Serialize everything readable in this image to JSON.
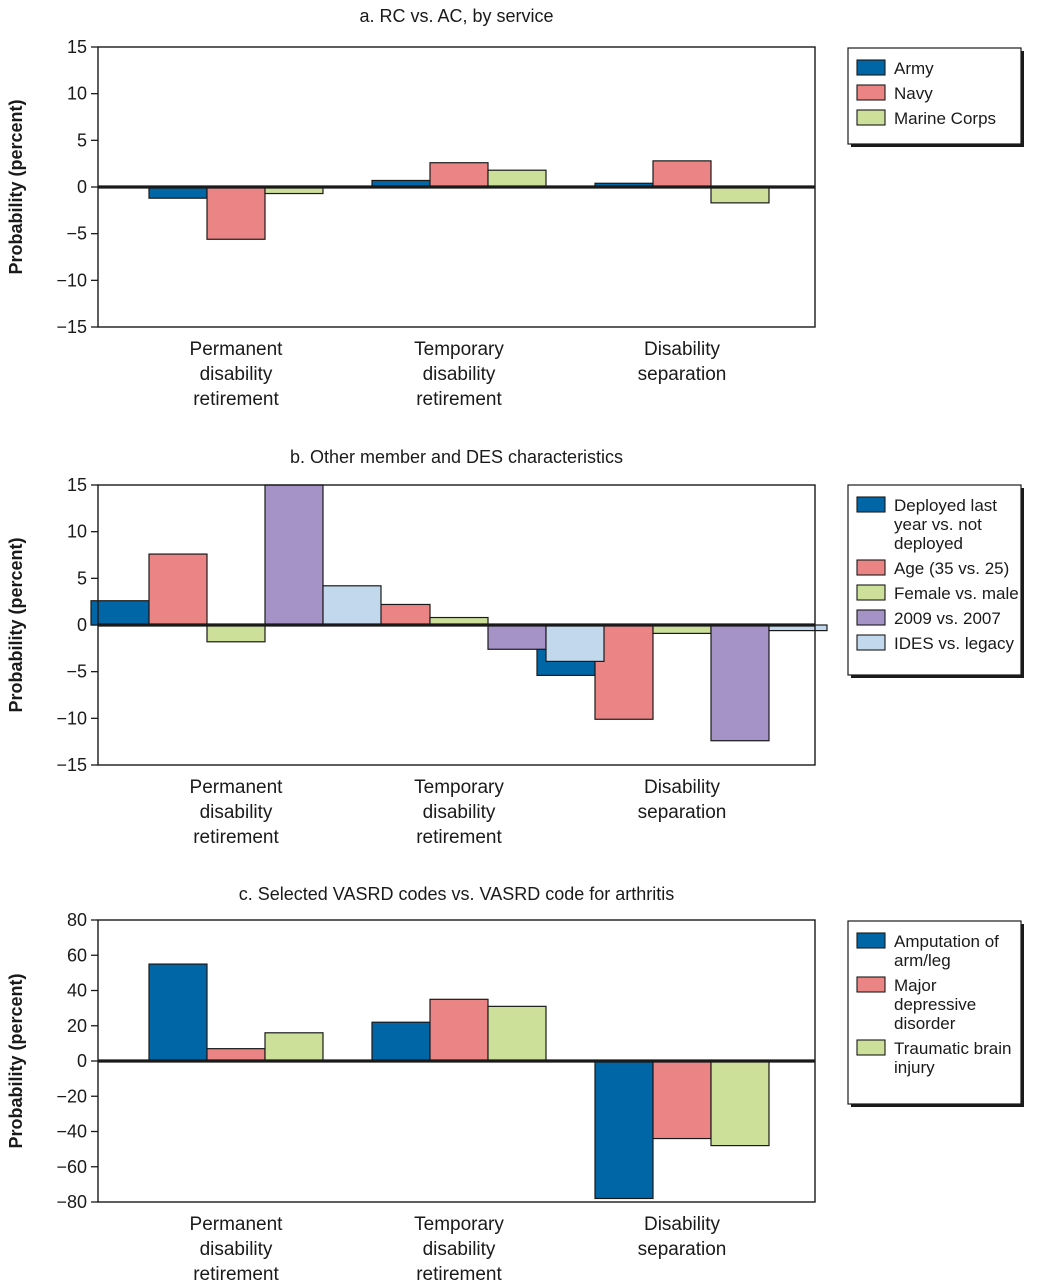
{
  "chart_data": [
    {
      "type": "bar",
      "title": "a. RC vs. AC, by service",
      "ylabel": "Probability (percent)",
      "xlabel": "",
      "ylim": [
        -15,
        15
      ],
      "yticks": [
        "15",
        "10",
        "5",
        "0",
        "−5",
        "−10",
        "−15"
      ],
      "ytick_values": [
        15,
        10,
        5,
        0,
        -5,
        -10,
        -15
      ],
      "categories": [
        [
          "Permanent",
          "disability",
          "retirement"
        ],
        [
          "Temporary",
          "disability",
          "retirement"
        ],
        [
          "Disability",
          "separation"
        ]
      ],
      "legend_position": "right",
      "series": [
        {
          "name": [
            "Army"
          ],
          "color": "#0066a6",
          "values": [
            -1.2,
            0.7,
            0.4
          ]
        },
        {
          "name": [
            "Navy"
          ],
          "color": "#eb8585",
          "values": [
            -5.6,
            2.6,
            2.8
          ]
        },
        {
          "name": [
            "Marine Corps"
          ],
          "color": "#cce099",
          "values": [
            -0.7,
            1.8,
            -1.7
          ]
        }
      ]
    },
    {
      "type": "bar",
      "title": "b. Other member and DES characteristics",
      "ylabel": "Probability (percent)",
      "xlabel": "",
      "ylim": [
        -15,
        15
      ],
      "yticks": [
        "15",
        "10",
        "5",
        "0",
        "−5",
        "−10",
        "−15"
      ],
      "ytick_values": [
        15,
        10,
        5,
        0,
        -5,
        -10,
        -15
      ],
      "categories": [
        [
          "Permanent",
          "disability",
          "retirement"
        ],
        [
          "Temporary",
          "disability",
          "retirement"
        ],
        [
          "Disability",
          "separation"
        ]
      ],
      "legend_position": "right",
      "series": [
        {
          "name": [
            "Deployed last",
            "year vs. not",
            "deployed"
          ],
          "color": "#0066a6",
          "values": [
            2.6,
            2.6,
            -5.4
          ]
        },
        {
          "name": [
            "Age (35 vs. 25)"
          ],
          "color": "#eb8585",
          "values": [
            7.6,
            2.2,
            -10.1
          ]
        },
        {
          "name": [
            "Female vs. male"
          ],
          "color": "#cce099",
          "values": [
            -1.8,
            0.8,
            -0.9
          ]
        },
        {
          "name": [
            "2009 vs. 2007"
          ],
          "color": "#a593c8",
          "values": [
            15.0,
            -2.6,
            -12.4
          ]
        },
        {
          "name": [
            "IDES vs. legacy"
          ],
          "color": "#c2d8ec",
          "values": [
            4.2,
            -3.9,
            -0.6
          ]
        }
      ]
    },
    {
      "type": "bar",
      "title": "c. Selected VASRD codes vs. VASRD code for arthritis",
      "ylabel": "Probability (percent)",
      "xlabel": "",
      "ylim": [
        -80,
        80
      ],
      "yticks": [
        "80",
        "60",
        "40",
        "20",
        "0",
        "−20",
        "−40",
        "−60",
        "−80"
      ],
      "ytick_values": [
        80,
        60,
        40,
        20,
        0,
        -20,
        -40,
        -60,
        -80
      ],
      "categories": [
        [
          "Permanent",
          "disability",
          "retirement"
        ],
        [
          "Temporary",
          "disability",
          "retirement"
        ],
        [
          "Disability",
          "separation"
        ]
      ],
      "legend_position": "right",
      "series": [
        {
          "name": [
            "Amputation of",
            "arm/leg"
          ],
          "color": "#0066a6",
          "values": [
            55,
            22,
            -78
          ]
        },
        {
          "name": [
            "Major",
            "depressive",
            "disorder"
          ],
          "color": "#eb8585",
          "values": [
            7,
            35,
            -44
          ]
        },
        {
          "name": [
            "Traumatic brain",
            "injury"
          ],
          "color": "#cce099",
          "values": [
            16,
            31,
            -48
          ]
        }
      ]
    }
  ]
}
